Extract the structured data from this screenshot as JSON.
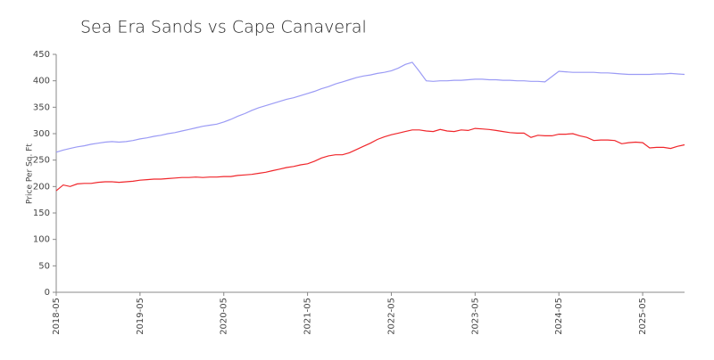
{
  "chart_data": {
    "type": "line",
    "title": "Sea Era Sands vs Cape Canaveral",
    "y_label": "Price Per Sq. Ft",
    "x": [
      "2018-05",
      "2018-06",
      "2018-07",
      "2018-08",
      "2018-09",
      "2018-10",
      "2018-11",
      "2018-12",
      "2019-01",
      "2019-02",
      "2019-03",
      "2019-04",
      "2019-05",
      "2019-06",
      "2019-07",
      "2019-08",
      "2019-09",
      "2019-10",
      "2019-11",
      "2019-12",
      "2020-01",
      "2020-02",
      "2020-03",
      "2020-04",
      "2020-05",
      "2020-06",
      "2020-07",
      "2020-08",
      "2020-09",
      "2020-10",
      "2020-11",
      "2020-12",
      "2021-01",
      "2021-02",
      "2021-03",
      "2021-04",
      "2021-05",
      "2021-06",
      "2021-07",
      "2021-08",
      "2021-09",
      "2021-10",
      "2021-11",
      "2021-12",
      "2022-01",
      "2022-02",
      "2022-03",
      "2022-04",
      "2022-05",
      "2022-06",
      "2022-07",
      "2022-08",
      "2022-09",
      "2022-10",
      "2022-11",
      "2022-12",
      "2023-01",
      "2023-02",
      "2023-03",
      "2023-04",
      "2023-05",
      "2023-06",
      "2023-07",
      "2023-08",
      "2023-09",
      "2023-10",
      "2023-11",
      "2023-12",
      "2024-01",
      "2024-02",
      "2024-03",
      "2024-04",
      "2024-05",
      "2024-06",
      "2024-07",
      "2024-08",
      "2024-09",
      "2024-10",
      "2024-11",
      "2024-12",
      "2025-01",
      "2025-02",
      "2025-03",
      "2025-04",
      "2025-05",
      "2025-06",
      "2025-07",
      "2025-08",
      "2025-09",
      "2025-10",
      "2025-11"
    ],
    "xticks": [
      "2018-05",
      "2019-05",
      "2020-05",
      "2021-05",
      "2022-05",
      "2023-05",
      "2024-05",
      "2025-05"
    ],
    "series": [
      {
        "color": "#9b9bf5",
        "values": [
          265,
          269,
          272,
          275,
          277,
          280,
          282,
          284,
          285,
          284,
          285,
          287,
          290,
          292,
          295,
          297,
          300,
          302,
          305,
          308,
          311,
          314,
          316,
          318,
          322,
          327,
          333,
          338,
          344,
          349,
          353,
          357,
          361,
          365,
          368,
          372,
          376,
          380,
          385,
          389,
          394,
          398,
          402,
          406,
          409,
          411,
          414,
          416,
          419,
          424,
          431,
          435,
          418,
          400,
          399,
          400,
          400,
          401,
          401,
          402,
          403,
          403,
          402,
          402,
          401,
          401,
          400,
          400,
          399,
          399,
          398,
          408,
          418,
          417,
          416,
          416,
          416,
          416,
          415,
          415,
          414,
          413,
          412,
          412,
          412,
          412,
          413,
          413,
          414,
          413,
          412
        ]
      },
      {
        "color": "#f0262b",
        "values": [
          192,
          203,
          200,
          205,
          206,
          206,
          208,
          209,
          209,
          208,
          209,
          210,
          212,
          213,
          214,
          214,
          215,
          216,
          217,
          217,
          218,
          217,
          218,
          218,
          219,
          219,
          221,
          222,
          223,
          225,
          227,
          230,
          233,
          236,
          238,
          241,
          243,
          248,
          254,
          258,
          260,
          260,
          264,
          270,
          276,
          282,
          289,
          294,
          298,
          301,
          304,
          307,
          307,
          305,
          304,
          308,
          305,
          304,
          307,
          306,
          310,
          309,
          308,
          306,
          304,
          302,
          301,
          301,
          293,
          297,
          296,
          296,
          299,
          299,
          300,
          296,
          293,
          287,
          288,
          288,
          287,
          281,
          283,
          284,
          283,
          273,
          274,
          274,
          272,
          276,
          279
        ]
      }
    ],
    "ylim": [
      0,
      450
    ],
    "yticks": [
      0,
      50,
      100,
      150,
      200,
      250,
      300,
      350,
      400,
      450
    ]
  }
}
